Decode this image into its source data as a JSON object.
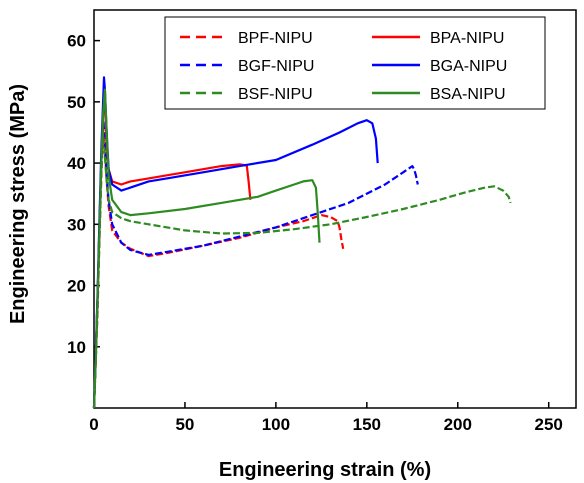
{
  "chart_data": {
    "type": "line",
    "title": "",
    "xlabel": "Engineering strain (%)",
    "ylabel": "Engineering stress (MPa)",
    "xlim": [
      0,
      265
    ],
    "ylim": [
      0,
      65
    ],
    "xticks": [
      0,
      50,
      100,
      150,
      200,
      250
    ],
    "yticks": [
      10,
      20,
      30,
      40,
      50,
      60
    ],
    "grid": false,
    "legend_position": "top-right",
    "series": [
      {
        "name": "BPF-NIPU",
        "color": "#ff0000",
        "dash": "dashed",
        "x": [
          0,
          1,
          2,
          3,
          4,
          5,
          6,
          7,
          8,
          10,
          15,
          20,
          30,
          40,
          60,
          80,
          100,
          115,
          125,
          130,
          134,
          135,
          136,
          137
        ],
        "y": [
          0,
          8,
          16,
          28,
          38,
          46,
          42,
          37,
          33,
          29,
          27,
          26,
          24.8,
          25.3,
          26.5,
          27.8,
          29.5,
          30.5,
          31.5,
          31.2,
          30.5,
          29.5,
          27.5,
          26
        ]
      },
      {
        "name": "BGF-NIPU",
        "color": "#0000ff",
        "dash": "dashed",
        "x": [
          0,
          1,
          2,
          3,
          4,
          5,
          6,
          7,
          8,
          10,
          15,
          20,
          30,
          40,
          60,
          80,
          100,
          120,
          140,
          160,
          170,
          175,
          176,
          177,
          178
        ],
        "y": [
          0,
          9,
          18,
          30,
          40,
          47,
          44,
          38,
          34,
          30,
          27,
          25.8,
          25,
          25.5,
          26.5,
          28,
          29.5,
          31.5,
          33.5,
          36.5,
          38.5,
          39.5,
          39,
          38,
          36.5
        ]
      },
      {
        "name": "BSF-NIPU",
        "color": "#2e8b22",
        "dash": "dashed",
        "x": [
          0,
          1,
          2,
          3,
          4,
          5,
          6,
          7,
          8,
          10,
          15,
          20,
          30,
          50,
          70,
          90,
          110,
          130,
          150,
          170,
          190,
          205,
          215,
          220,
          225,
          228,
          229
        ],
        "y": [
          0,
          8,
          17,
          28,
          38,
          45,
          41,
          37,
          34,
          32,
          31,
          30.5,
          30,
          29,
          28.5,
          28.6,
          29.2,
          30,
          31.2,
          32.5,
          34,
          35.3,
          36,
          36.2,
          35.5,
          34.5,
          33.5
        ]
      },
      {
        "name": "BPA-NIPU",
        "color": "#ff0000",
        "dash": "solid",
        "x": [
          0,
          1,
          2,
          3,
          4,
          5,
          6,
          7,
          8,
          10,
          15,
          20,
          30,
          40,
          50,
          60,
          70,
          80,
          84,
          85,
          86
        ],
        "y": [
          0,
          9,
          18,
          30,
          40,
          48,
          50,
          43,
          39,
          37,
          36.5,
          37,
          37.5,
          38,
          38.5,
          39,
          39.5,
          39.8,
          39.6,
          37,
          34
        ]
      },
      {
        "name": "BGA-NIPU",
        "color": "#0000ff",
        "dash": "solid",
        "x": [
          0,
          1,
          2,
          3,
          4,
          5,
          5.5,
          6,
          7,
          8,
          10,
          15,
          20,
          30,
          40,
          60,
          80,
          100,
          120,
          135,
          145,
          150,
          153,
          155,
          156
        ],
        "y": [
          0,
          9,
          19,
          31,
          42,
          50,
          54,
          52,
          45,
          39,
          36.5,
          35.5,
          36,
          37,
          37.5,
          38.5,
          39.5,
          40.5,
          43,
          45,
          46.5,
          47,
          46.5,
          44,
          40
        ]
      },
      {
        "name": "BSA-NIPU",
        "color": "#2e8b22",
        "dash": "solid",
        "x": [
          0,
          1,
          2,
          3,
          4,
          5,
          6,
          7,
          8,
          10,
          15,
          20,
          30,
          50,
          70,
          90,
          100,
          110,
          115,
          120,
          122,
          123,
          124
        ],
        "y": [
          0,
          8,
          18,
          29,
          40,
          48,
          52,
          45,
          38,
          34,
          32,
          31.5,
          31.8,
          32.5,
          33.5,
          34.5,
          35.5,
          36.5,
          37,
          37.2,
          36,
          32,
          27
        ]
      }
    ]
  }
}
